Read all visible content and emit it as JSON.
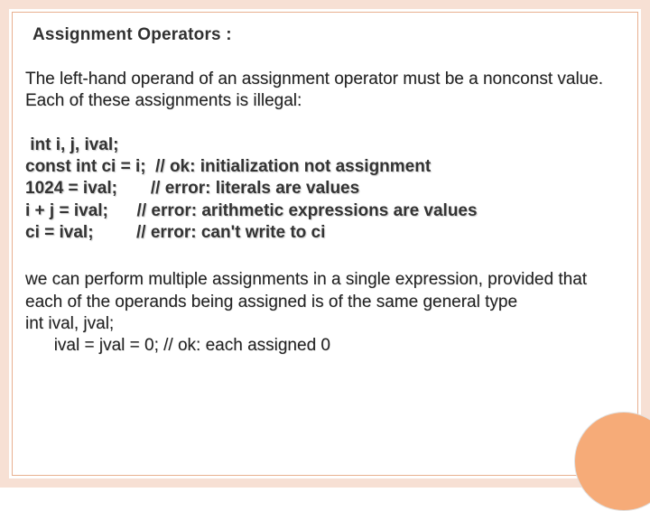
{
  "slide": {
    "title": "Assignment Operators :",
    "paragraph1": "The left-hand operand of an assignment operator must be a nonconst value. Each of these assignments is illegal:",
    "code_lines": [
      " int i, j, ival;",
      "const int ci = i;  // ok: initialization not assignment",
      "1024 = ival;       // error: literals are values",
      "i + j = ival;      // error: arithmetic expressions are values",
      "ci = ival;         // error: can't write to ci"
    ],
    "paragraph2_lines": [
      "we can perform multiple assignments in a single expression, provided that each of the operands being assigned is of the same general type",
      "int ival, jval;",
      "      ival = jval = 0; // ok: each assigned 0"
    ]
  },
  "styling": {
    "frame_color": "#f7e0d4",
    "frame_line_color": "#e8b090",
    "circle_color": "#f6ab78",
    "background_color": "#ffffff",
    "title_fontsize": 19,
    "body_fontsize": 19,
    "title_color": "#303030",
    "body_color": "#222222",
    "code_color": "#333333",
    "font_family": "Arial, sans-serif",
    "slide_width": 720,
    "slide_height": 540
  }
}
